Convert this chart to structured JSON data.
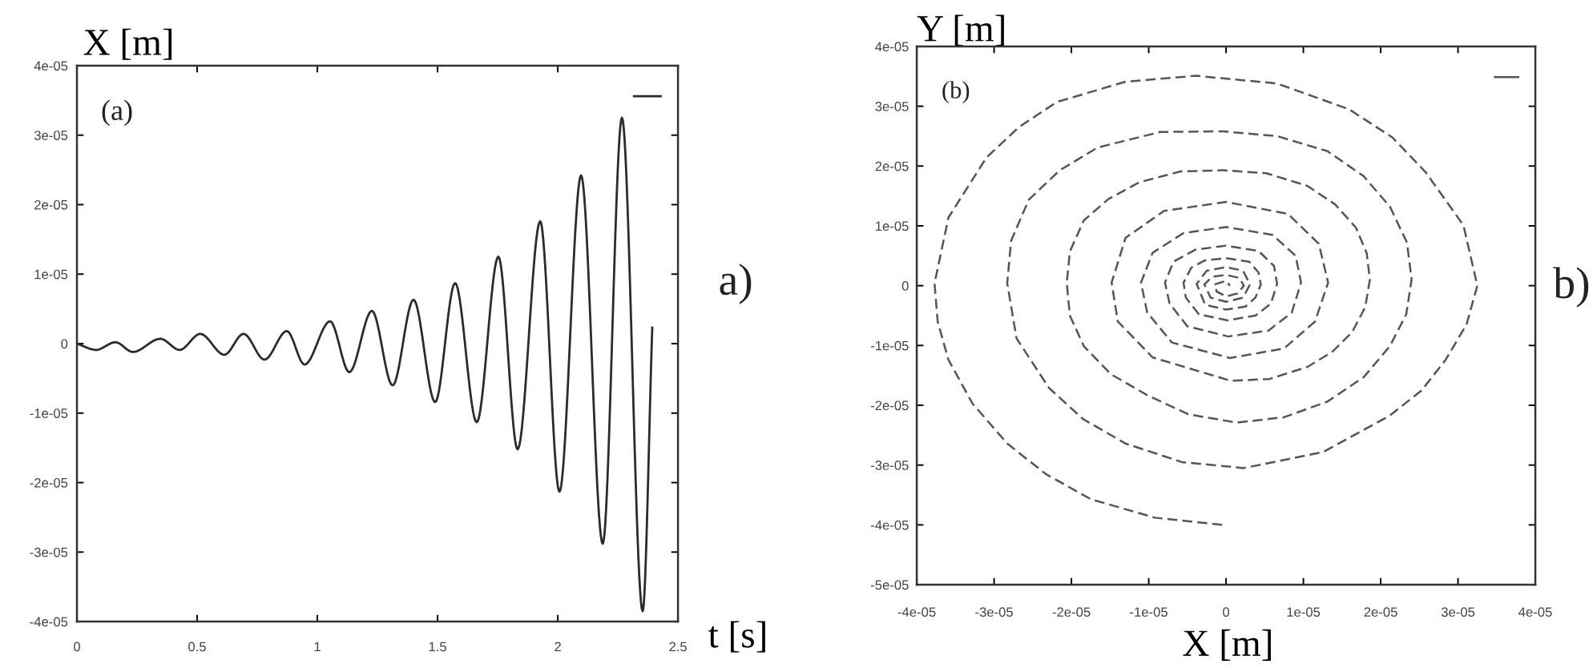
{
  "chart_data": [
    {
      "type": "line",
      "xlabel": "t [s]",
      "ylabel": "X [m]",
      "annotations": [
        "(a)",
        "a)"
      ],
      "x": [
        0,
        0.08,
        0.16,
        0.233,
        0.347,
        0.427,
        0.513,
        0.613,
        0.693,
        0.78,
        0.873,
        0.947,
        1.053,
        1.133,
        1.227,
        1.313,
        1.4,
        1.49,
        1.573,
        1.663,
        1.753,
        1.833,
        1.927,
        2.007,
        2.097,
        2.187,
        2.267,
        2.353,
        2.393
      ],
      "series": [
        {
          "color": "#2b2b2b",
          "values": [
            0,
            -9e-07,
            2e-07,
            -1.2e-06,
            7e-07,
            -9e-07,
            1.4e-06,
            -1.6e-06,
            1.4e-06,
            -2.3e-06,
            1.8e-06,
            -3e-06,
            3.2e-06,
            -4.1e-06,
            4.7e-06,
            -6e-06,
            6.3e-06,
            -8.4e-06,
            8.7e-06,
            -1.13e-05,
            1.25e-05,
            -1.52e-05,
            1.76e-05,
            -2.13e-05,
            2.42e-05,
            -2.88e-05,
            3.25e-05,
            -3.85e-05,
            2.3e-06
          ]
        }
      ],
      "xlim": [
        0,
        2.5
      ],
      "xticks": [
        0,
        0.5,
        1,
        1.5,
        2,
        2.5
      ],
      "ylim": [
        -4e-05,
        4e-05
      ],
      "yticks": [
        {
          "value": -4e-05,
          "label": "-4e-05"
        },
        {
          "value": -3e-05,
          "label": "-3e-05"
        },
        {
          "value": -2e-05,
          "label": "-2e-05"
        },
        {
          "value": -1e-05,
          "label": "-1e-05"
        },
        0,
        {
          "value": 1e-05,
          "label": "1e-05"
        },
        {
          "value": 2e-05,
          "label": "2e-05"
        },
        {
          "value": 3e-05,
          "label": "3e-05"
        },
        {
          "value": 4e-05,
          "label": "4e-05"
        }
      ],
      "line_style": "solid"
    },
    {
      "type": "line",
      "xlabel": "X [m]",
      "ylabel": "Y [m]",
      "annotations": [
        "(b)",
        "b)"
      ],
      "x": [
        -5e-07,
        -9.2e-06,
        -1.75e-05,
        -2.33e-05,
        -2.83e-05,
        -3.28e-05,
        -3.59e-05,
        -3.73e-05,
        -3.77e-05,
        -3.59e-05,
        -3.1e-05,
        -2.68e-05,
        -2.19e-05,
        -1.3e-05,
        -3.9e-06,
        6.6e-06,
        1.59e-05,
        2.15e-05,
        2.58e-05,
        3.07e-05,
        3.25e-05,
        3.11e-05,
        2.84e-05,
        2.53e-05,
        2.12e-05,
        1.26e-05,
        2.3e-06,
        -5.7e-06,
        -1.3e-05,
        -1.85e-05,
        -2.29e-05,
        -2.71e-05,
        -2.83e-05,
        -2.78e-05,
        -2.55e-05,
        -2.15e-05,
        -1.66e-05,
        -8.5e-06,
        -4e-07,
        6.6e-06,
        1.31e-05,
        1.78e-05,
        2.12e-05,
        2.34e-05,
        2.4e-05,
        2.33e-05,
        2.12e-05,
        1.78e-05,
        1.31e-05,
        7.5e-06,
        1.4e-06,
        -4.9e-06,
        -1.02e-05,
        -1.49e-05,
        -1.84e-05,
        -2.02e-05,
        -2.06e-05,
        -2.02e-05,
        -1.84e-05,
        -1.52e-05,
        -1.12e-05,
        -5.9e-06,
        -4e-07,
        5.2e-06,
        1.05e-05,
        1.41e-05,
        1.68e-05,
        1.82e-05,
        1.86e-05,
        1.8e-05,
        1.63e-05,
        1.37e-05,
        1.05e-05,
        5.6e-06,
        6e-07,
        -9.5e-06,
        -1.4e-05,
        -1.48e-05,
        -1.3e-05,
        -8e-06,
        0,
        8e-06,
        1.2e-05,
        1.32e-05,
        1.15e-05,
        7.5e-06,
        5e-07,
        -7e-06,
        -1.02e-05,
        -1.1e-05,
        -9.5e-06,
        -5.5e-06,
        0,
        6e-06,
        9e-06,
        9.7e-06,
        8.5e-06,
        5.5e-06,
        3e-07,
        -5e-06,
        -7.3e-06,
        -7.9e-06,
        -6.8e-06,
        -4e-06,
        0,
        4.2e-06,
        6.2e-06,
        6.6e-06,
        5.8e-06,
        3.8e-06,
        2e-07,
        -3.5e-06,
        -5.2e-06,
        -5.5e-06,
        -4.5e-06,
        -2.8e-06,
        0,
        3e-06,
        4.2e-06,
        4.5e-06,
        3.8e-06,
        2.5e-06,
        0,
        -2.7e-06,
        -3.8e-06,
        -2.5e-06,
        0,
        2.2e-06,
        3.1e-06,
        2.2e-06,
        0,
        -2e-06,
        -2.8e-06,
        -1.8e-06,
        0,
        1.7e-06,
        2.3e-06,
        1.5e-06,
        0,
        -1.2e-06,
        -1.5e-06,
        0,
        5e-07
      ],
      "series": [
        {
          "color": "#555555",
          "values": [
            -4e-05,
            -3.88e-05,
            -3.57e-05,
            -3.15e-05,
            -2.64e-05,
            -1.97e-05,
            -1.24e-05,
            -6e-06,
            4e-07,
            1.14e-05,
            2.14e-05,
            2.65e-05,
            3.07e-05,
            3.41e-05,
            3.51e-05,
            3.38e-05,
            2.95e-05,
            2.48e-05,
            1.9e-05,
            1.01e-05,
            0,
            -6.5e-06,
            -1.24e-05,
            -1.75e-05,
            -2.17e-05,
            -2.78e-05,
            -3.05e-05,
            -2.95e-05,
            -2.64e-05,
            -2.23e-05,
            -1.71e-05,
            -8.8e-06,
            4e-07,
            7.5e-06,
            1.44e-05,
            1.93e-05,
            2.31e-05,
            2.57e-05,
            2.58e-05,
            2.5e-05,
            2.25e-05,
            1.83e-05,
            1.32e-05,
            7.2e-06,
            1e-06,
            -4.8e-06,
            -1.01e-05,
            -1.53e-05,
            -1.94e-05,
            -2.2e-05,
            -2.29e-05,
            -2.15e-05,
            -1.83e-05,
            -1.48e-05,
            -1.01e-05,
            -5e-06,
            4e-07,
            5.7e-06,
            1.09e-05,
            1.45e-05,
            1.73e-05,
            1.91e-05,
            1.93e-05,
            1.88e-05,
            1.67e-05,
            1.36e-05,
            9.7e-06,
            5.4e-06,
            1e-06,
            -3.6e-06,
            -7.8e-06,
            -1.11e-05,
            -1.36e-05,
            -1.56e-05,
            -1.59e-05,
            -1.2e-05,
            -6e-06,
            5e-07,
            8e-06,
            1.25e-05,
            1.4e-05,
            1.2e-05,
            7e-06,
            5e-07,
            -6e-06,
            -1.05e-05,
            -1.21e-05,
            -9.5e-06,
            -4.5e-06,
            5e-07,
            5.5e-06,
            8.8e-06,
            9.8e-06,
            8.5e-06,
            5e-06,
            5e-07,
            -4.5e-06,
            -7.5e-06,
            -8.5e-06,
            -6.8e-06,
            -3e-06,
            5e-07,
            4e-06,
            6e-06,
            6.7e-06,
            5.8e-06,
            3.3e-06,
            3e-07,
            -3e-06,
            -5e-06,
            -5.8e-06,
            -4.8e-06,
            -2e-06,
            5e-07,
            3e-06,
            4.2e-06,
            4.6e-06,
            4e-06,
            2.2e-06,
            2e-07,
            -2e-06,
            -3.5e-06,
            -4e-06,
            -3.2e-06,
            3e-07,
            2.5e-06,
            3.1e-06,
            2.5e-06,
            2e-07,
            -2e-06,
            -2.7e-06,
            -2e-06,
            2e-07,
            1.5e-06,
            1.8e-06,
            1.3e-06,
            0,
            -1.3e-06,
            -1.8e-06,
            -1e-06,
            2e-07,
            8e-07,
            0
          ]
        }
      ],
      "xlim": [
        -4e-05,
        4e-05
      ],
      "xticks": [
        {
          "value": -4e-05,
          "label": "-4e-05"
        },
        {
          "value": -3e-05,
          "label": "-3e-05"
        },
        {
          "value": -2e-05,
          "label": "-2e-05"
        },
        {
          "value": -1e-05,
          "label": "-1e-05"
        },
        0,
        {
          "value": 1e-05,
          "label": "1e-05"
        },
        {
          "value": 2e-05,
          "label": "2e-05"
        },
        {
          "value": 3e-05,
          "label": "3e-05"
        },
        {
          "value": 4e-05,
          "label": "4e-05"
        }
      ],
      "ylim": [
        -5e-05,
        4e-05
      ],
      "yticks": [
        {
          "value": -5e-05,
          "label": "-5e-05"
        },
        {
          "value": -4e-05,
          "label": "-4e-05"
        },
        {
          "value": -3e-05,
          "label": "-3e-05"
        },
        {
          "value": -2e-05,
          "label": "-2e-05"
        },
        {
          "value": -1e-05,
          "label": "-1e-05"
        },
        0,
        {
          "value": 1e-05,
          "label": "1e-05"
        },
        {
          "value": 2e-05,
          "label": "2e-05"
        },
        {
          "value": 3e-05,
          "label": "3e-05"
        },
        {
          "value": 4e-05,
          "label": "4e-05"
        }
      ],
      "line_style": "dashed"
    }
  ]
}
